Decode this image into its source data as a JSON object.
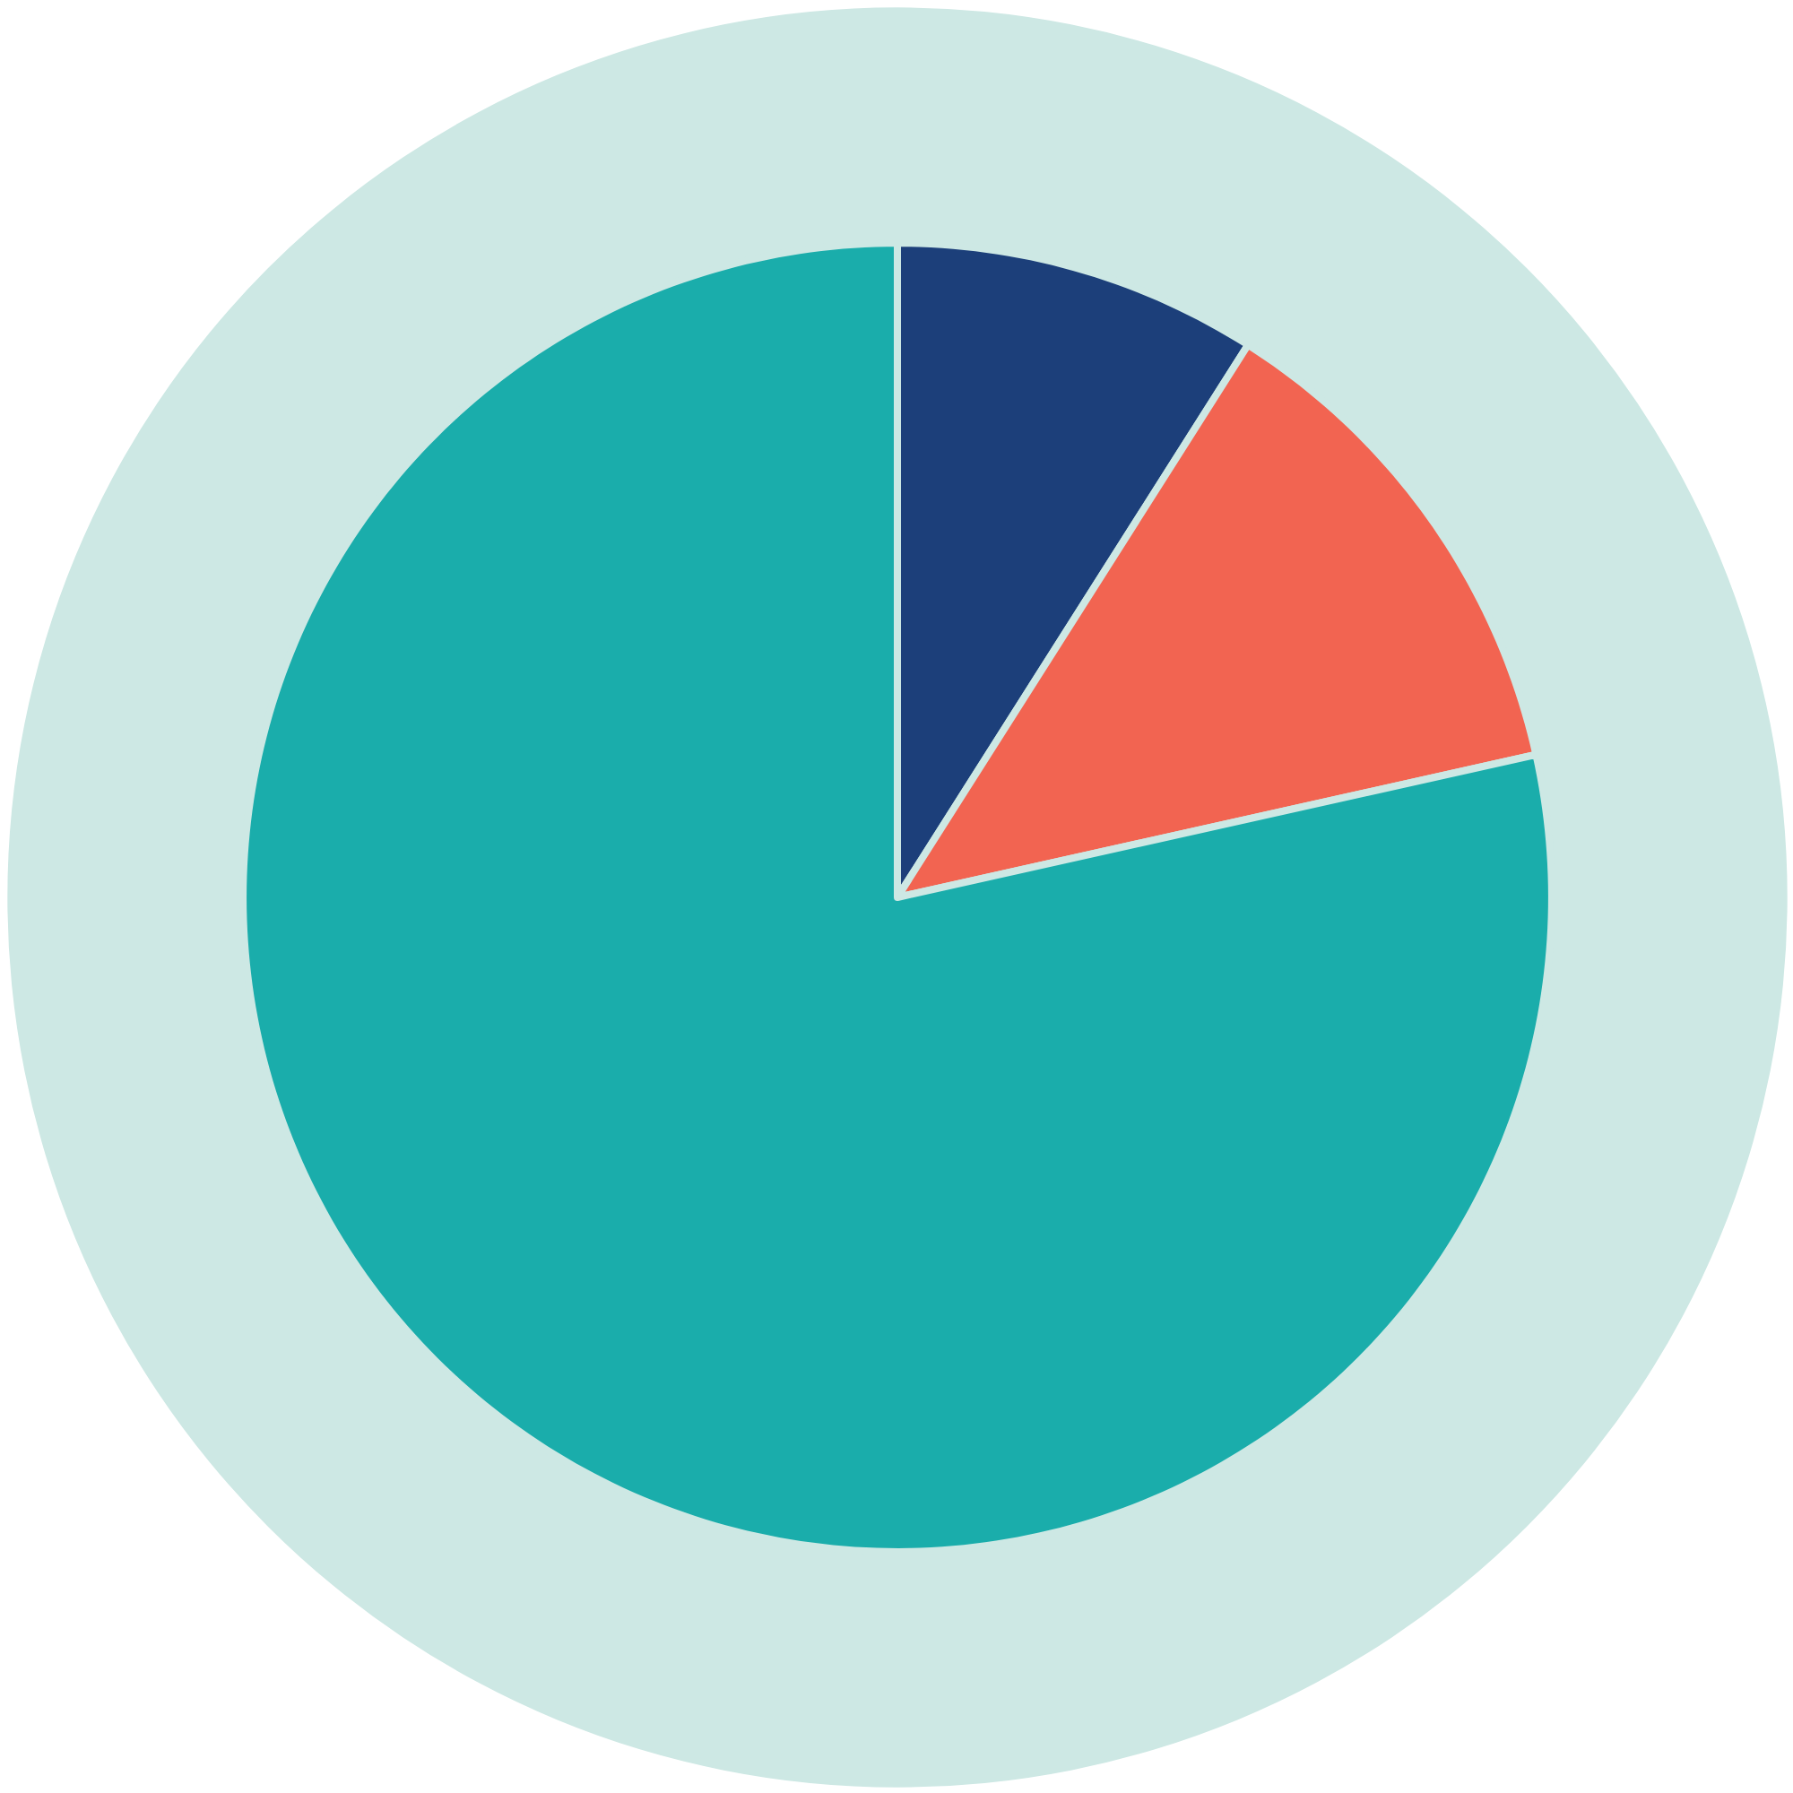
{
  "chart_data": {
    "type": "pie",
    "categories": [
      null,
      null,
      null
    ],
    "values": [
      9,
      12.5,
      78.5
    ],
    "colors": [
      "#1c3f7a",
      "#f26451",
      "#1aadab"
    ]
  }
}
